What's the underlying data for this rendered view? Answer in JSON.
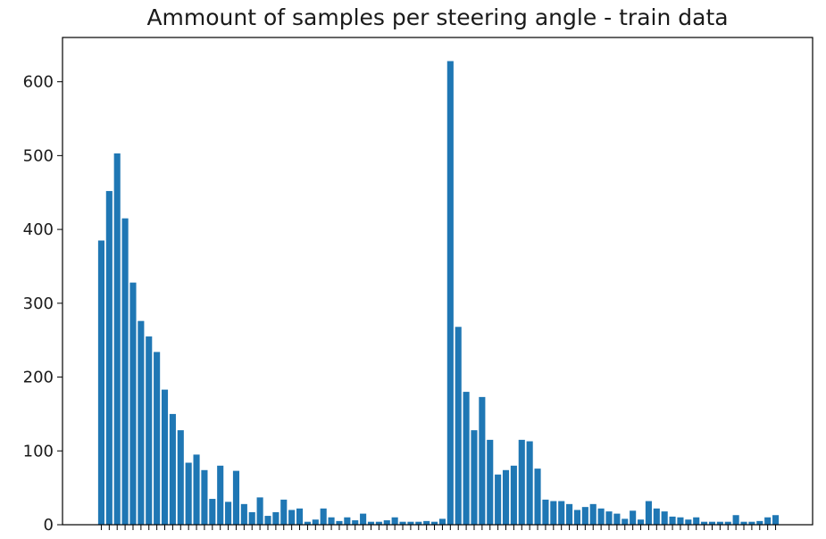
{
  "chart_data": {
    "type": "bar",
    "title": "Ammount of samples per steering angle - train data",
    "xlabel": "",
    "ylabel": "",
    "ylim": [
      0,
      660
    ],
    "yticks": [
      0,
      100,
      200,
      300,
      400,
      500,
      600
    ],
    "grid": false,
    "bar_color": "#1f77b4",
    "values": [
      385,
      452,
      503,
      415,
      328,
      276,
      255,
      234,
      183,
      150,
      128,
      84,
      95,
      74,
      35,
      80,
      31,
      73,
      28,
      17,
      37,
      12,
      17,
      34,
      20,
      22,
      4,
      7,
      22,
      10,
      5,
      10,
      6,
      15,
      4,
      4,
      6,
      10,
      4,
      4,
      4,
      5,
      4,
      8,
      628,
      268,
      180,
      128,
      173,
      115,
      68,
      74,
      80,
      115,
      113,
      76,
      34,
      32,
      32,
      28,
      20,
      24,
      28,
      22,
      18,
      15,
      8,
      19,
      7,
      32,
      22,
      18,
      11,
      10,
      7,
      10,
      4,
      4,
      4,
      4,
      13,
      4,
      4,
      5,
      10,
      13
    ]
  }
}
